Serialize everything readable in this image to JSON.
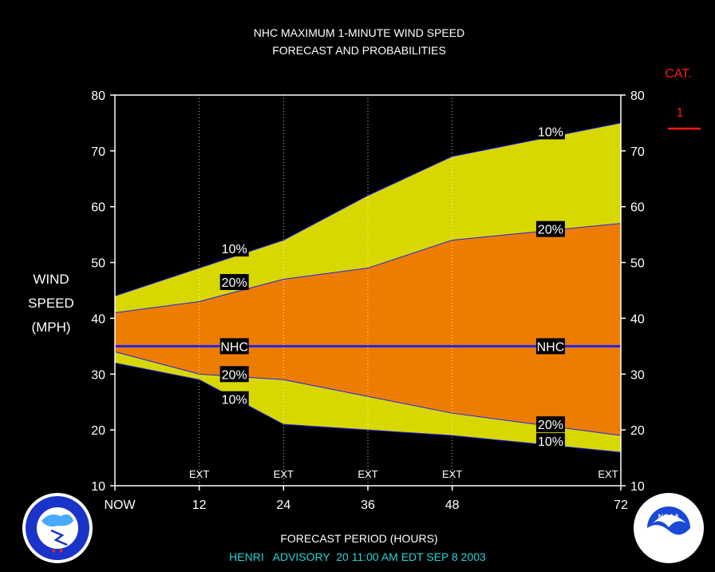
{
  "chart_data": {
    "type": "area",
    "title": "NHC MAXIMUM 1-MINUTE WIND SPEED",
    "subtitle": "FORECAST AND PROBABILITIES",
    "ylabel_lines": [
      "WIND",
      "SPEED",
      "(MPH)"
    ],
    "xlabel": "FORECAST PERIOD (HOURS)",
    "footer": "HENRI   ADVISORY  20 11:00 AM EDT SEP 8 2003",
    "category": {
      "label": "CAT.",
      "value": "1"
    },
    "ylim": [
      10,
      80
    ],
    "xlim": [
      0,
      72
    ],
    "yticks": [
      10,
      20,
      30,
      40,
      50,
      60,
      70,
      80
    ],
    "xticks": [
      {
        "x": 0,
        "label": "NOW"
      },
      {
        "x": 12,
        "label": "12"
      },
      {
        "x": 24,
        "label": "24"
      },
      {
        "x": 36,
        "label": "36"
      },
      {
        "x": 48,
        "label": "48"
      },
      {
        "x": 72,
        "label": "72"
      }
    ],
    "ext_marks": [
      {
        "x": 12,
        "label": "EXT"
      },
      {
        "x": 24,
        "label": "EXT"
      },
      {
        "x": 36,
        "label": "EXT"
      },
      {
        "x": 48,
        "label": "EXT"
      },
      {
        "x": 72,
        "label": "EXT"
      }
    ],
    "x": [
      0,
      12,
      24,
      36,
      48,
      72
    ],
    "series": [
      {
        "name": "10%",
        "values": [
          44,
          49,
          54,
          62,
          69,
          75
        ]
      },
      {
        "name": "20%",
        "values": [
          41,
          43,
          47,
          49,
          54,
          57
        ]
      },
      {
        "name": "NHC",
        "values": [
          35,
          35,
          35,
          35,
          35,
          35
        ]
      },
      {
        "name": "20%",
        "values": [
          34,
          30,
          29,
          26,
          23,
          19
        ]
      },
      {
        "name": "10%",
        "values": [
          32,
          29,
          21,
          20,
          19,
          16
        ]
      }
    ],
    "band_labels": [
      {
        "text": "10%",
        "x": 17,
        "y": 52.5
      },
      {
        "text": "20%",
        "x": 17,
        "y": 46.5
      },
      {
        "text": "NHC",
        "x": 17,
        "y": 35
      },
      {
        "text": "20%",
        "x": 17,
        "y": 30
      },
      {
        "text": "10%",
        "x": 17,
        "y": 25.5
      },
      {
        "text": "10%",
        "x": 62,
        "y": 73.5
      },
      {
        "text": "20%",
        "x": 62,
        "y": 56
      },
      {
        "text": "NHC",
        "x": 62,
        "y": 35
      },
      {
        "text": "20%",
        "x": 62,
        "y": 21
      },
      {
        "text": "10%",
        "x": 62,
        "y": 18
      }
    ],
    "colors": {
      "outer_band": "#d8d800",
      "inner_band": "#ec7d00",
      "nhc_line": "#2222ee",
      "background": "#000000",
      "text": "#ffffff",
      "footer_text": "#27d3d8",
      "category": "#ff1a1a"
    },
    "grid": false
  },
  "logos": {
    "left": "NATIONAL WEATHER SERVICE",
    "right": "NOAA"
  }
}
